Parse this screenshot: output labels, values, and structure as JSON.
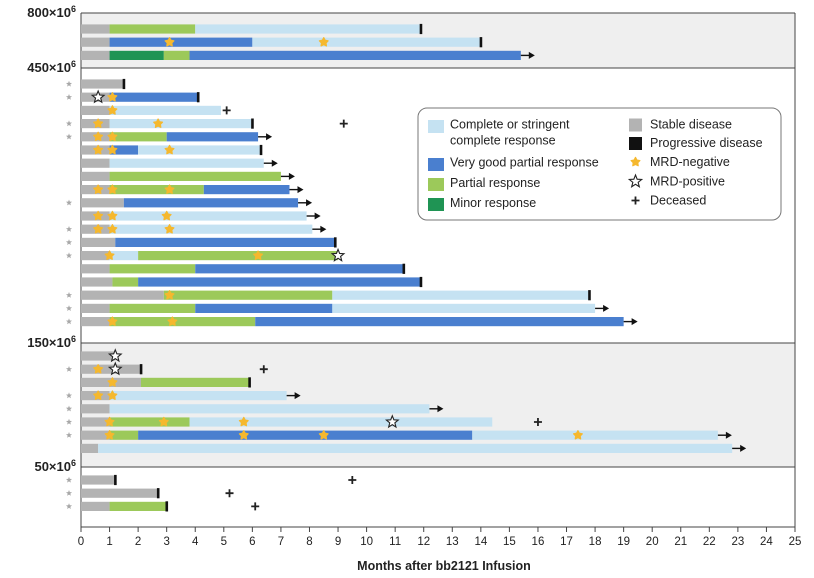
{
  "chart_data": {
    "type": "swimmer",
    "xlabel": "Months after bb2121 Infusion",
    "xlim": [
      0,
      25
    ],
    "xticks": [
      0,
      1,
      2,
      3,
      4,
      5,
      6,
      7,
      8,
      9,
      10,
      11,
      12,
      13,
      14,
      15,
      16,
      17,
      18,
      19,
      20,
      21,
      22,
      23,
      24,
      25
    ],
    "colors": {
      "CR": "#c5e2f2",
      "VGPR": "#4a7fcf",
      "PR": "#9cc95a",
      "MR": "#1f9454",
      "SD": "#b3b3b3",
      "PD": "#111111",
      "MRDneg": "#f5b82e",
      "MRDpos": "#ffffff",
      "dead": "#222222",
      "group_bg": "#efefef"
    },
    "legend": [
      {
        "key": "CR",
        "type": "swatch",
        "label": "Complete or stringent complete response"
      },
      {
        "key": "VGPR",
        "type": "swatch",
        "label": "Very good partial response"
      },
      {
        "key": "PR",
        "type": "swatch",
        "label": "Partial response"
      },
      {
        "key": "MR",
        "type": "swatch",
        "label": "Minor response"
      },
      {
        "key": "SD",
        "type": "swatch",
        "label": "Stable disease"
      },
      {
        "key": "PD",
        "type": "swatch",
        "label": "Progressive disease"
      },
      {
        "key": "MRDneg",
        "type": "dot",
        "label": "MRD-negative"
      },
      {
        "key": "MRDpos",
        "type": "star",
        "label": "MRD-positive"
      },
      {
        "key": "dead",
        "type": "cross",
        "label": "Deceased"
      }
    ],
    "groups": [
      {
        "dose": "800×10",
        "exp": "6",
        "shaded": true,
        "rows": [
          {
            "segs": [
              [
                0,
                1,
                "SD"
              ],
              [
                1,
                4,
                "PR"
              ],
              [
                4,
                11.9,
                "CR"
              ]
            ],
            "pd": 11.9
          },
          {
            "segs": [
              [
                0,
                1,
                "SD"
              ],
              [
                1,
                6,
                "VGPR"
              ],
              [
                6,
                14,
                "CR"
              ]
            ],
            "pd": 14,
            "mrdneg": [
              3.1,
              8.5
            ]
          },
          {
            "segs": [
              [
                0,
                1,
                "SD"
              ],
              [
                1,
                2.9,
                "MR"
              ],
              [
                2.9,
                3.8,
                "PR"
              ],
              [
                3.8,
                15.4,
                "VGPR"
              ]
            ],
            "arrow": true
          }
        ]
      },
      {
        "dose": "450×10",
        "exp": "6",
        "shaded": false,
        "rows": [
          {
            "segs": [
              [
                0,
                1.5,
                "SD"
              ]
            ],
            "pd": 1.5,
            "asterisk": true
          },
          {
            "segs": [
              [
                0,
                1,
                "SD"
              ],
              [
                1,
                4.1,
                "VGPR"
              ]
            ],
            "pd": 4.1,
            "mrdpos": [
              0.6
            ],
            "mrdneg": [
              1.1
            ],
            "asterisk": true
          },
          {
            "segs": [
              [
                0,
                1,
                "SD"
              ],
              [
                1,
                4.9,
                "CR"
              ]
            ],
            "dead": 5.1,
            "mrdneg": [
              1.1
            ]
          },
          {
            "segs": [
              [
                0,
                1,
                "SD"
              ],
              [
                1,
                6,
                "CR"
              ]
            ],
            "pd": 6,
            "mrdneg": [
              0.6,
              2.7
            ],
            "asterisk": true,
            "dead": 9.2
          },
          {
            "segs": [
              [
                0,
                1,
                "SD"
              ],
              [
                1,
                3,
                "PR"
              ],
              [
                3,
                6.2,
                "VGPR"
              ]
            ],
            "arrow": true,
            "mrdneg": [
              0.6,
              1.1
            ],
            "asterisk": true
          },
          {
            "segs": [
              [
                0,
                1,
                "SD"
              ],
              [
                1,
                2,
                "VGPR"
              ],
              [
                2,
                6.3,
                "CR"
              ]
            ],
            "pd": 6.3,
            "mrdneg": [
              0.6,
              1.1,
              3.1
            ]
          },
          {
            "segs": [
              [
                0,
                1,
                "SD"
              ],
              [
                1,
                6.4,
                "CR"
              ]
            ],
            "arrow": true
          },
          {
            "segs": [
              [
                0,
                1,
                "SD"
              ],
              [
                1,
                7,
                "PR"
              ]
            ],
            "arrow": true
          },
          {
            "segs": [
              [
                0,
                1,
                "SD"
              ],
              [
                1,
                4.3,
                "PR"
              ],
              [
                4.3,
                7.3,
                "VGPR"
              ]
            ],
            "arrow": true,
            "mrdneg": [
              0.6,
              1.1,
              3.1
            ]
          },
          {
            "segs": [
              [
                0,
                1.5,
                "SD"
              ],
              [
                1.5,
                7.6,
                "VGPR"
              ]
            ],
            "arrow": true,
            "asterisk": true
          },
          {
            "segs": [
              [
                0,
                1,
                "SD"
              ],
              [
                1,
                7.9,
                "CR"
              ]
            ],
            "arrow": true,
            "mrdneg": [
              0.6,
              1.1,
              3.0
            ]
          },
          {
            "segs": [
              [
                0,
                1,
                "SD"
              ],
              [
                1,
                8.1,
                "CR"
              ]
            ],
            "arrow": true,
            "mrdneg": [
              0.6,
              1.1,
              3.1
            ],
            "asterisk": true
          },
          {
            "segs": [
              [
                0,
                1.2,
                "SD"
              ],
              [
                1.2,
                8.9,
                "VGPR"
              ]
            ],
            "pd": 8.9,
            "asterisk": true
          },
          {
            "segs": [
              [
                0,
                1,
                "SD"
              ],
              [
                1,
                2,
                "CR"
              ],
              [
                2,
                9,
                "PR"
              ]
            ],
            "mrdneg": [
              1.0,
              6.2
            ],
            "mrdpos": [
              9.0
            ],
            "asterisk": true
          },
          {
            "segs": [
              [
                0,
                1,
                "SD"
              ],
              [
                1,
                4,
                "PR"
              ],
              [
                4,
                11.3,
                "VGPR"
              ]
            ],
            "pd": 11.3
          },
          {
            "segs": [
              [
                0,
                1.1,
                "SD"
              ],
              [
                1.1,
                2,
                "PR"
              ],
              [
                2,
                11.9,
                "VGPR"
              ]
            ],
            "pd": 11.9
          },
          {
            "segs": [
              [
                0,
                2.9,
                "SD"
              ],
              [
                2.9,
                8.8,
                "PR"
              ],
              [
                8.8,
                17.8,
                "CR"
              ]
            ],
            "pd": 17.8,
            "mrdneg": [
              3.1
            ],
            "asterisk": true
          },
          {
            "segs": [
              [
                0,
                1,
                "SD"
              ],
              [
                1,
                4,
                "PR"
              ],
              [
                4,
                8.8,
                "VGPR"
              ],
              [
                8.8,
                18,
                "CR"
              ]
            ],
            "arrow": true,
            "asterisk": true
          },
          {
            "segs": [
              [
                0,
                1,
                "SD"
              ],
              [
                1,
                6.1,
                "PR"
              ],
              [
                6.1,
                19,
                "VGPR"
              ]
            ],
            "arrow": true,
            "mrdneg": [
              1.1,
              3.2
            ],
            "asterisk": true
          }
        ]
      },
      {
        "dose": "150×10",
        "exp": "6",
        "shaded": true,
        "rows": [
          {
            "segs": [
              [
                0,
                1.2,
                "SD"
              ]
            ],
            "mrdpos": [
              1.2
            ]
          },
          {
            "segs": [
              [
                0,
                2.1,
                "SD"
              ]
            ],
            "pd": 2.1,
            "mrdneg": [
              0.6
            ],
            "mrdpos": [
              1.2
            ],
            "asterisk": true,
            "dead": 6.4
          },
          {
            "segs": [
              [
                0,
                2.1,
                "SD"
              ],
              [
                2.1,
                5.9,
                "PR"
              ]
            ],
            "pd": 5.9,
            "mrdneg": [
              1.1
            ]
          },
          {
            "segs": [
              [
                0,
                1,
                "SD"
              ],
              [
                1,
                7.2,
                "CR"
              ]
            ],
            "arrow": true,
            "mrdneg": [
              0.6,
              1.1
            ],
            "asterisk": true
          },
          {
            "segs": [
              [
                0,
                1,
                "SD"
              ],
              [
                1,
                12.2,
                "CR"
              ]
            ],
            "arrow": true,
            "asterisk": true
          },
          {
            "segs": [
              [
                0,
                1,
                "SD"
              ],
              [
                1,
                3.8,
                "PR"
              ],
              [
                3.8,
                14.4,
                "CR"
              ]
            ],
            "mrdneg": [
              1.0,
              2.9,
              5.7
            ],
            "mrdpos": [
              10.9
            ],
            "asterisk": true,
            "dead": 16
          },
          {
            "segs": [
              [
                0,
                1,
                "SD"
              ],
              [
                1,
                2,
                "PR"
              ],
              [
                2,
                13.7,
                "VGPR"
              ],
              [
                13.7,
                22.3,
                "CR"
              ]
            ],
            "arrow": true,
            "mrdneg": [
              1.0,
              5.7,
              8.5,
              17.4
            ],
            "asterisk": true
          },
          {
            "segs": [
              [
                0,
                0.6,
                "SD"
              ],
              [
                0.6,
                22.8,
                "CR"
              ]
            ],
            "arrow": true
          }
        ]
      },
      {
        "dose": "50×10",
        "exp": "6",
        "shaded": false,
        "rows": [
          {
            "segs": [
              [
                0,
                1.2,
                "SD"
              ]
            ],
            "pd": 1.2,
            "asterisk": true,
            "dead": 9.5
          },
          {
            "segs": [
              [
                0,
                2.7,
                "SD"
              ]
            ],
            "pd": 2.7,
            "asterisk": true,
            "dead": 5.2
          },
          {
            "segs": [
              [
                0,
                1,
                "SD"
              ],
              [
                1,
                3,
                "PR"
              ]
            ],
            "pd": 3,
            "asterisk": true,
            "dead": 6.1
          }
        ]
      }
    ]
  }
}
